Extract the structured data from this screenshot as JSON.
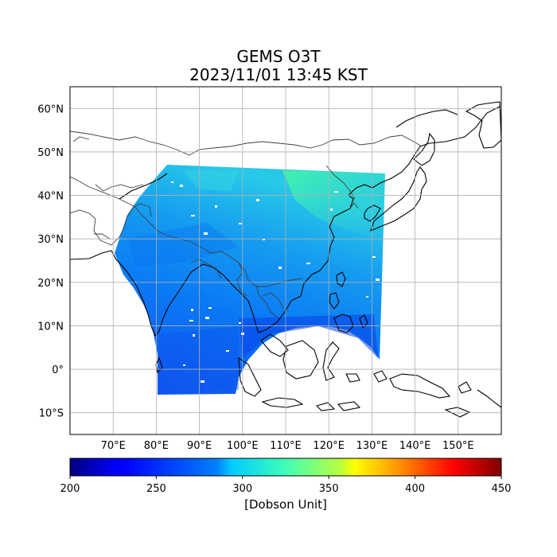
{
  "figure": {
    "title": "GEMS O3T",
    "subtitle": "2023/11/01 13:45 KST"
  },
  "map": {
    "lon_range": [
      60,
      160
    ],
    "lat_range": [
      -15,
      65
    ],
    "gridlines": true,
    "lon_ticks": [
      {
        "value": 70,
        "label": "70°E"
      },
      {
        "value": 80,
        "label": "80°E"
      },
      {
        "value": 90,
        "label": "90°E"
      },
      {
        "value": 100,
        "label": "100°E"
      },
      {
        "value": 110,
        "label": "110°E"
      },
      {
        "value": 120,
        "label": "120°E"
      },
      {
        "value": 130,
        "label": "130°E"
      },
      {
        "value": 140,
        "label": "140°E"
      },
      {
        "value": 150,
        "label": "150°E"
      }
    ],
    "lat_ticks": [
      {
        "value": 60,
        "label": "60°N"
      },
      {
        "value": 50,
        "label": "50°N"
      },
      {
        "value": 40,
        "label": "40°N"
      },
      {
        "value": 30,
        "label": "30°N"
      },
      {
        "value": 20,
        "label": "20°N"
      },
      {
        "value": 10,
        "label": "10°N"
      },
      {
        "value": 0,
        "label": "0°"
      },
      {
        "value": -10,
        "label": "10°S"
      }
    ]
  },
  "colorbar": {
    "colormap": "jet",
    "range": [
      200,
      450
    ],
    "ticks": [
      {
        "value": 200,
        "label": "200"
      },
      {
        "value": 250,
        "label": "250"
      },
      {
        "value": 300,
        "label": "300"
      },
      {
        "value": 350,
        "label": "350"
      },
      {
        "value": 400,
        "label": "400"
      },
      {
        "value": 450,
        "label": "450"
      }
    ],
    "unit_label": "[Dobson Unit]"
  }
}
